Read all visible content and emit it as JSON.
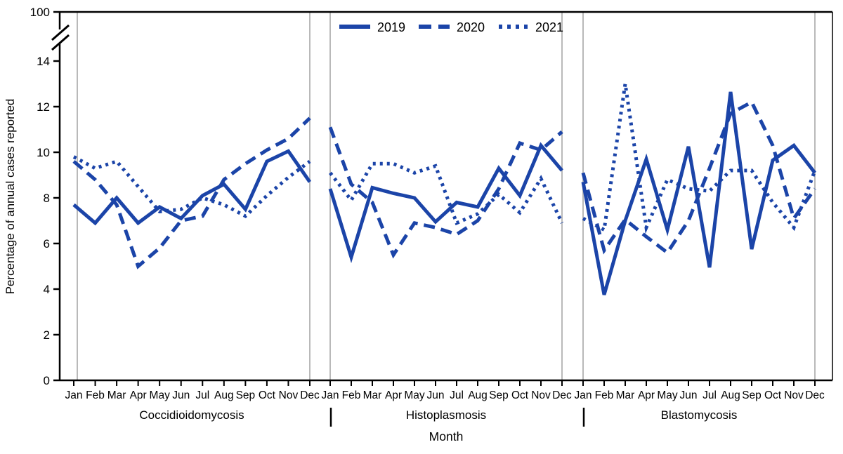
{
  "chart_data": {
    "type": "line",
    "title": "",
    "ylabel": "Percentage of annual cases reported",
    "xlabel": "Month",
    "ylim": [
      0,
      14
    ],
    "y_axis_break_top_label": "100",
    "y_ticks": [
      0,
      2,
      4,
      6,
      8,
      10,
      12,
      14
    ],
    "grid": false,
    "legend_position": "top-center",
    "line_color": "#1b44a8",
    "panel_divider_color": "#b9b9b9",
    "months": [
      "Jan",
      "Feb",
      "Mar",
      "Apr",
      "May",
      "Jun",
      "Jul",
      "Aug",
      "Sep",
      "Oct",
      "Nov",
      "Dec"
    ],
    "legend": [
      {
        "name": "2019",
        "style": "solid"
      },
      {
        "name": "2020",
        "style": "dashed"
      },
      {
        "name": "2021",
        "style": "dotted"
      }
    ],
    "panels": [
      {
        "label": "Coccidioidomycosis",
        "series": [
          {
            "name": "2019",
            "style": "solid",
            "values": [
              7.7,
              6.9,
              8.0,
              6.9,
              7.6,
              7.1,
              8.1,
              8.6,
              7.5,
              9.6,
              10.05,
              8.7
            ]
          },
          {
            "name": "2020",
            "style": "dashed",
            "values": [
              9.6,
              8.8,
              7.7,
              5.0,
              5.8,
              7.0,
              7.2,
              8.8,
              9.5,
              10.1,
              10.6,
              11.5
            ]
          },
          {
            "name": "2021",
            "style": "dotted",
            "values": [
              9.8,
              9.3,
              9.6,
              8.5,
              7.4,
              7.5,
              8.0,
              7.7,
              7.2,
              8.1,
              8.9,
              9.6
            ]
          }
        ]
      },
      {
        "label": "Histoplasmosis",
        "series": [
          {
            "name": "2019",
            "style": "solid",
            "values": [
              8.4,
              5.4,
              8.45,
              8.2,
              8.0,
              6.95,
              7.8,
              7.6,
              9.3,
              8.1,
              10.3,
              9.2
            ]
          },
          {
            "name": "2020",
            "style": "dashed",
            "values": [
              11.1,
              8.6,
              7.8,
              5.5,
              6.9,
              6.7,
              6.4,
              7.0,
              8.4,
              10.4,
              10.1,
              10.9
            ]
          },
          {
            "name": "2021",
            "style": "dotted",
            "values": [
              9.1,
              7.9,
              9.5,
              9.5,
              9.1,
              9.4,
              6.9,
              7.3,
              8.15,
              7.35,
              8.85,
              6.9
            ]
          }
        ]
      },
      {
        "label": "Blastomycosis",
        "series": [
          {
            "name": "2019",
            "style": "solid",
            "values": [
              8.7,
              3.75,
              7.0,
              9.7,
              6.6,
              10.25,
              4.95,
              12.65,
              5.75,
              9.65,
              10.3,
              9.1
            ]
          },
          {
            "name": "2020",
            "style": "dashed",
            "values": [
              9.1,
              5.7,
              7.05,
              6.3,
              5.6,
              7.0,
              9.3,
              11.7,
              12.2,
              10.3,
              7.1,
              8.4
            ]
          },
          {
            "name": "2021",
            "style": "dotted",
            "values": [
              7.1,
              6.6,
              13.0,
              6.7,
              8.8,
              8.4,
              8.3,
              9.2,
              9.2,
              7.8,
              6.7,
              9.2
            ]
          }
        ]
      }
    ]
  }
}
